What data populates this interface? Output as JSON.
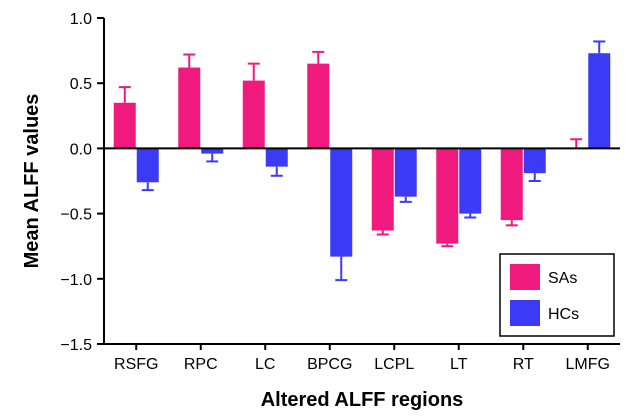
{
  "chart_data": {
    "type": "bar",
    "title": "",
    "xlabel": "Altered ALFF regions",
    "ylabel": "Mean ALFF values",
    "ylim": [
      -1.5,
      1.0
    ],
    "yticks": [
      "1.0",
      "0.5",
      "0.0",
      "−0.5",
      "−1.0",
      "−1.5"
    ],
    "ytick_values": [
      1.0,
      0.5,
      0.0,
      -0.5,
      -1.0,
      -1.5
    ],
    "categories": [
      "RSFG",
      "RPC",
      "LC",
      "BPCG",
      "LCPL",
      "LT",
      "RT",
      "LMFG"
    ],
    "series": [
      {
        "name": "SAs",
        "color": "#f0197d",
        "values": [
          0.35,
          0.62,
          0.52,
          0.65,
          -0.63,
          -0.73,
          -0.55,
          0.0
        ],
        "errors": [
          0.12,
          0.1,
          0.13,
          0.09,
          0.03,
          0.02,
          0.04,
          0.07
        ]
      },
      {
        "name": "HCs",
        "color": "#3b3bf5",
        "values": [
          -0.26,
          -0.04,
          -0.14,
          -0.83,
          -0.37,
          -0.5,
          -0.19,
          0.73
        ],
        "errors": [
          0.06,
          0.06,
          0.07,
          0.18,
          0.04,
          0.03,
          0.06,
          0.09
        ]
      }
    ],
    "grid": false,
    "legend_position": "bottom-right"
  }
}
